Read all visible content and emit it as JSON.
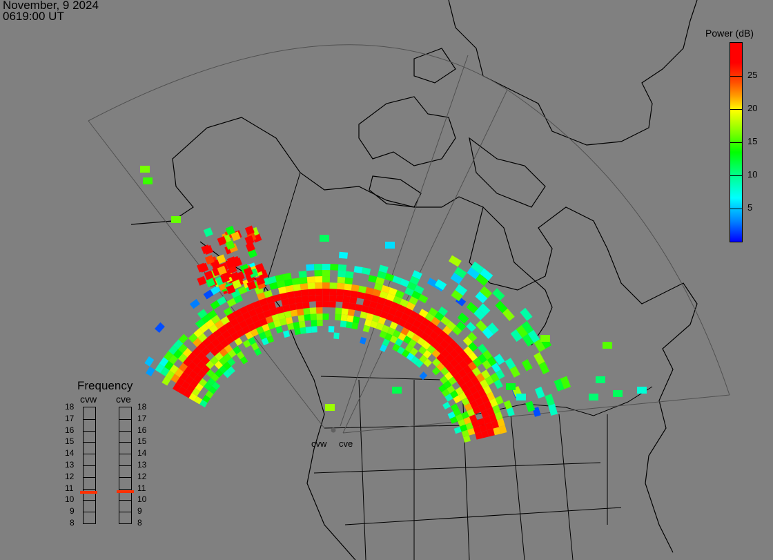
{
  "header": {
    "date": "November, 9 2024",
    "time": "0619:00 UT"
  },
  "colorbar": {
    "label": "Power (dB)",
    "range": [
      0,
      30
    ],
    "ticks": [
      "5",
      "10",
      "15",
      "20",
      "25"
    ],
    "colors": [
      "#0000ff",
      "#00ffff",
      "#00ff00",
      "#ffff00",
      "#ff8000",
      "#ff0000"
    ]
  },
  "frequency_panel": {
    "title": "Frequency",
    "scale_min": 8,
    "scale_max": 18,
    "labels": [
      "18",
      "17",
      "16",
      "15",
      "14",
      "13",
      "12",
      "11",
      "10",
      "9",
      "8"
    ],
    "radars": [
      {
        "name": "cvw",
        "frequency_mhz": 10.6
      },
      {
        "name": "cve",
        "frequency_mhz": 10.7
      }
    ],
    "marker_color": "#ff3000"
  },
  "map": {
    "site_labels": [
      "cvw",
      "cve"
    ],
    "background": "#808080",
    "coastline_color": "#000000",
    "fov_color": "#505050"
  }
}
